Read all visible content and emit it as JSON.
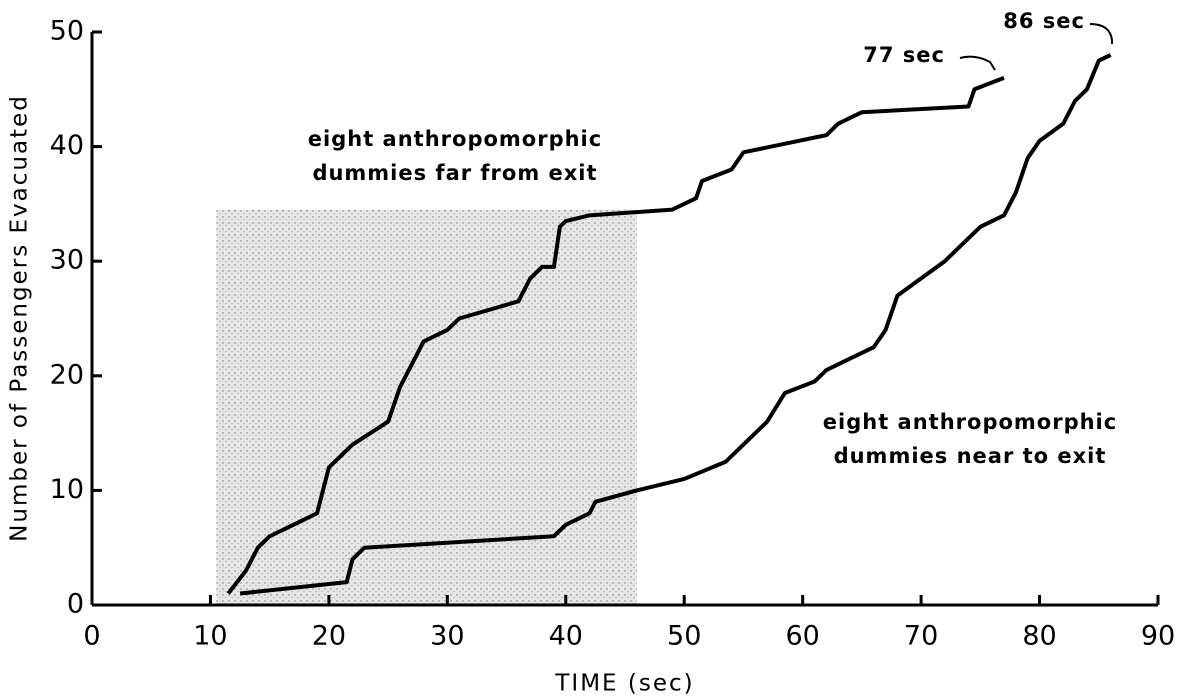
{
  "chart_data": {
    "type": "line",
    "xlabel": "TIME (sec)",
    "ylabel": "Number of Passengers Evacuated",
    "xlim": [
      0,
      90
    ],
    "xticks": [
      0,
      10,
      20,
      30,
      40,
      50,
      60,
      70,
      80,
      90
    ],
    "ylim": [
      0,
      50
    ],
    "yticks": [
      0,
      10,
      20,
      30,
      40,
      50
    ],
    "shade": {
      "x": [
        10.5,
        46
      ],
      "y": [
        0,
        34.5
      ]
    },
    "series": [
      {
        "color": "#000000",
        "x": [
          11.5,
          13,
          14,
          15,
          17,
          19,
          20,
          22,
          25,
          26,
          27,
          28,
          30,
          31,
          36,
          37,
          38,
          39,
          39.5,
          40,
          42,
          49,
          51,
          51.5,
          54,
          55,
          62,
          63,
          65,
          74,
          74.5,
          77
        ],
        "values": [
          1,
          3,
          5,
          6,
          7,
          8,
          12,
          14,
          16,
          19,
          21,
          23,
          24,
          25,
          26.5,
          28.5,
          29.5,
          29.5,
          33,
          33.5,
          34,
          34.5,
          35.5,
          37,
          38,
          39.5,
          41,
          42,
          43,
          43.5,
          45,
          46
        ]
      },
      {
        "color": "#000000",
        "x": [
          12.5,
          21.5,
          22,
          23,
          39,
          40,
          42,
          42.5,
          46,
          50,
          53.5,
          55,
          57,
          58.5,
          61,
          62,
          64,
          66,
          67,
          68,
          70,
          72,
          75,
          77,
          78,
          79,
          80,
          82,
          83,
          84,
          85,
          86
        ],
        "values": [
          1,
          2,
          4,
          5,
          6,
          7,
          8,
          9,
          10,
          11,
          12.5,
          14,
          16,
          18.5,
          19.5,
          20.5,
          21.5,
          22.5,
          24,
          27,
          28.5,
          30,
          33,
          34,
          36,
          39,
          40.5,
          42,
          44,
          45,
          47.5,
          48
        ]
      }
    ],
    "annotations": [
      {
        "lines": [
          "eight anthropomorphic",
          "dummies far from exit"
        ]
      },
      {
        "lines": [
          "eight anthropomorphic",
          "dummies near to exit"
        ]
      },
      {
        "lines": [
          "77 sec"
        ]
      },
      {
        "lines": [
          "86 sec"
        ]
      }
    ]
  }
}
